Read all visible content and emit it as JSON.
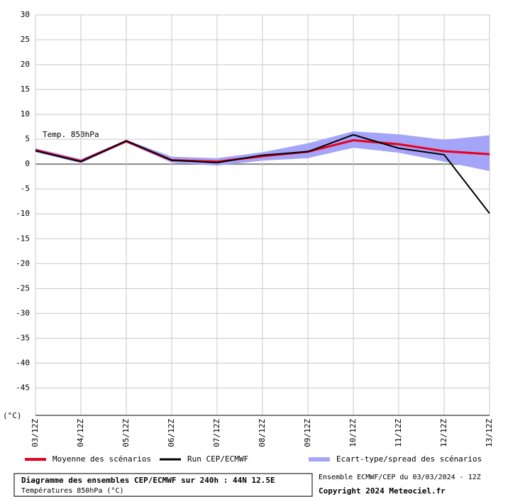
{
  "chart_data": {
    "type": "line",
    "annotation": "Temp. 850hPa",
    "y_unit_label": "(°C)",
    "categories": [
      "03/12Z",
      "04/12Z",
      "05/12Z",
      "06/12Z",
      "07/12Z",
      "08/12Z",
      "09/12Z",
      "10/12Z",
      "11/12Z",
      "12/12Z",
      "13/12Z"
    ],
    "series": [
      {
        "name": "Moyenne des scénarios",
        "color": "#e8001c",
        "values": [
          2.8,
          0.6,
          4.6,
          0.8,
          0.5,
          1.6,
          2.5,
          4.8,
          4.0,
          2.6,
          2.0
        ]
      },
      {
        "name": "Run CEP/ECMWF",
        "color": "#000000",
        "values": [
          2.7,
          0.5,
          4.7,
          0.8,
          0.3,
          1.8,
          2.5,
          5.9,
          3.2,
          1.9,
          -9.9
        ]
      }
    ],
    "band": {
      "name": "Ecart-type/spread des scénarios",
      "color": "#a4a4f8",
      "high": [
        3.2,
        1.0,
        4.9,
        1.5,
        1.2,
        2.4,
        4.2,
        6.6,
        6.0,
        4.9,
        5.8
      ],
      "low": [
        2.4,
        0.2,
        4.3,
        0.3,
        -0.3,
        0.7,
        1.2,
        3.3,
        2.3,
        0.5,
        -1.4
      ]
    },
    "ylim": [
      -50.5,
      30
    ],
    "yticks": [
      30,
      25,
      20,
      15,
      10,
      5,
      0,
      -5,
      -10,
      -15,
      -20,
      -25,
      -30,
      -35,
      -40,
      -45
    ],
    "grid": true,
    "footer": {
      "title": "Diagramme des ensembles CEP/ECMWF sur 240h : 44N 12.5E",
      "subtitle": "Températures 850hPa (°C)",
      "run_info": "Ensemble ECMWF/CEP du 03/03/2024 - 12Z",
      "copyright": "Copyright 2024 Meteociel.fr"
    }
  }
}
